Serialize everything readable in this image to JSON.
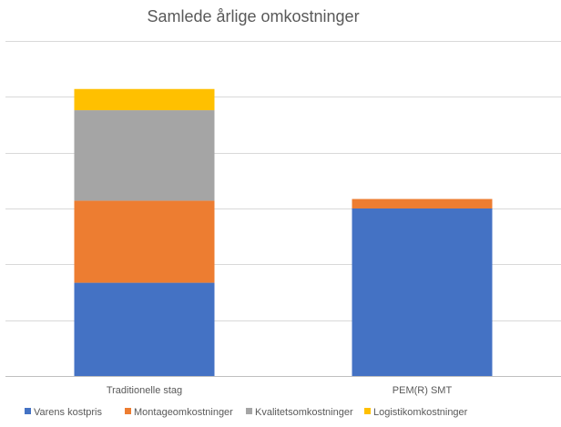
{
  "chart_data": {
    "type": "bar",
    "stacked": true,
    "title": "Samlede årlige omkostninger",
    "xlabel": "",
    "ylabel": "",
    "ylim": [
      0,
      6
    ],
    "y_gridlines": [
      0,
      1,
      2,
      3,
      4,
      5,
      6
    ],
    "y_tick_labels_visible": false,
    "grid": true,
    "legend_position": "bottom",
    "categories": [
      "Traditionelle stag",
      "PEM(R) SMT"
    ],
    "series": [
      {
        "name": "Varens kostpris",
        "color": "#4472C4",
        "values": [
          1.67,
          3.0
        ]
      },
      {
        "name": "Montageomkostninger",
        "color": "#ED7D31",
        "values": [
          1.47,
          0.17
        ]
      },
      {
        "name": "Kvalitetsomkostninger",
        "color": "#A5A5A5",
        "values": [
          1.62,
          0
        ]
      },
      {
        "name": "Logistikomkostninger",
        "color": "#FFC000",
        "values": [
          0.38,
          0
        ]
      }
    ]
  }
}
